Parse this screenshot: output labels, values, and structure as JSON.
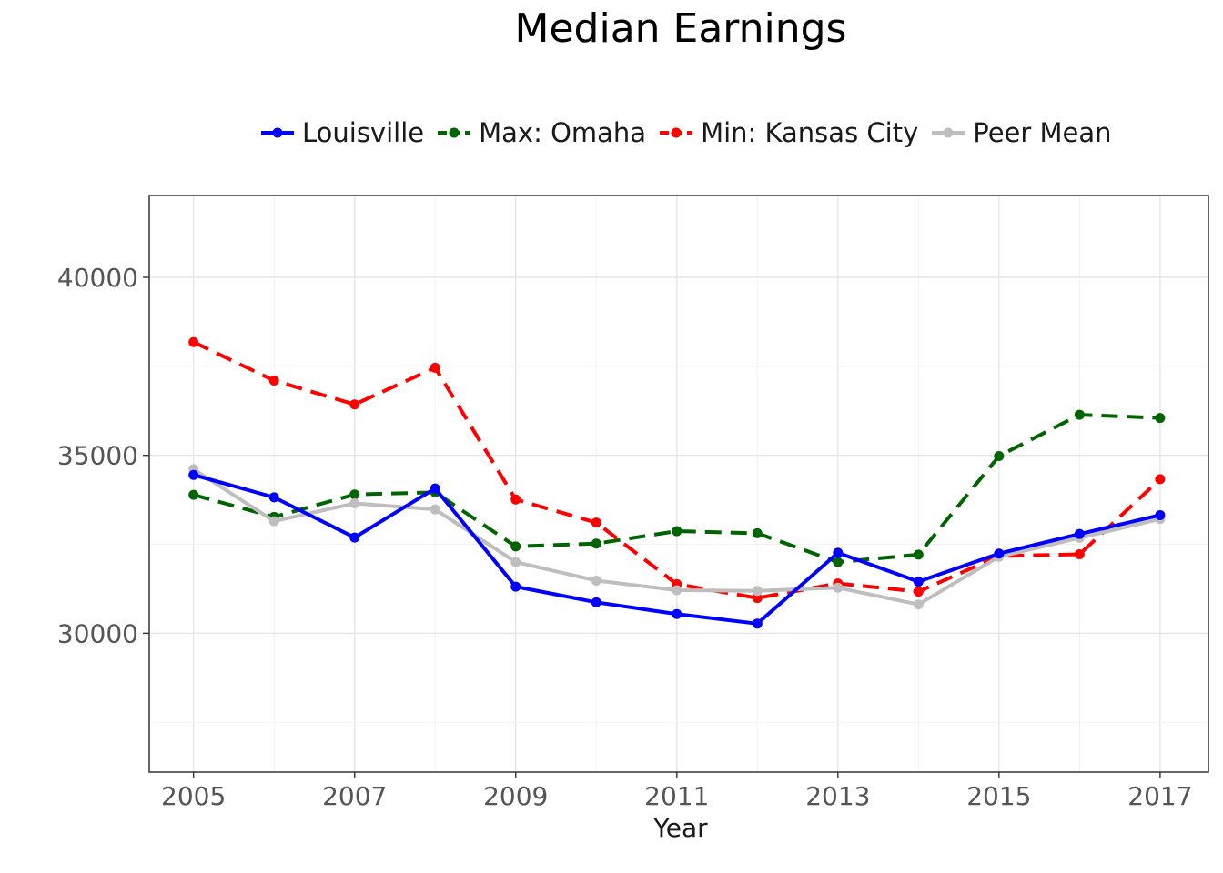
{
  "chart_data": {
    "type": "line",
    "title": "Median Earnings",
    "xlabel": "Year",
    "ylabel": "",
    "x": [
      2005,
      2006,
      2007,
      2008,
      2009,
      2010,
      2011,
      2012,
      2013,
      2014,
      2015,
      2016,
      2017
    ],
    "xlim": [
      2004.45,
      2017.6
    ],
    "ylim": [
      26100,
      42300
    ],
    "x_ticks": [
      2005,
      2007,
      2009,
      2011,
      2013,
      2015,
      2017
    ],
    "y_ticks": [
      30000,
      35000,
      40000
    ],
    "grid": true,
    "legend_position": "top",
    "series": [
      {
        "name": "Louisville",
        "color": "#0000ff",
        "dash": "solid",
        "values": [
          34450,
          33820,
          32690,
          34070,
          31310,
          30870,
          30540,
          30270,
          32260,
          31450,
          32240,
          32790,
          33320
        ]
      },
      {
        "name": "Max: Omaha",
        "color": "#006400",
        "dash": "dashed",
        "values": [
          33890,
          33270,
          33900,
          33960,
          32440,
          32520,
          32870,
          32810,
          32000,
          32210,
          34980,
          36140,
          36050
        ]
      },
      {
        "name": "Min: Kansas City",
        "color": "#ff0000",
        "dash": "dashed",
        "values": [
          38180,
          37100,
          36430,
          37460,
          33760,
          33110,
          31380,
          30990,
          31400,
          31170,
          32170,
          32220,
          34330
        ]
      },
      {
        "name": "Peer Mean",
        "color": "#bebebe",
        "dash": "solid",
        "values": [
          34610,
          33150,
          33650,
          33480,
          32000,
          31480,
          31210,
          31190,
          31280,
          30810,
          32150,
          32680,
          33210
        ]
      }
    ]
  }
}
